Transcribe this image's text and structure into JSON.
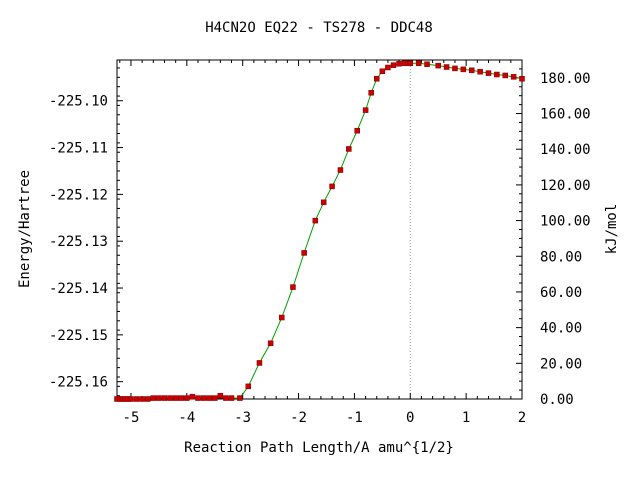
{
  "chart_data": {
    "type": "line",
    "title": "H4CN2O   EQ22 - TS278 - DDC48",
    "xlabel": "Reaction Path Length/A amu^{1/2}",
    "ylabel": "Energy/Hartree",
    "y2label": "kJ/mol",
    "xlim": [
      -5.25,
      2.0
    ],
    "ylim": [
      -225.1637,
      -225.0913
    ],
    "y2lim": [
      0.0,
      190.0
    ],
    "x_ticks": [
      "-5",
      "-4",
      "-3",
      "-2",
      "-1",
      "0",
      "1",
      "2"
    ],
    "y_ticks": [
      "-225.10",
      "-225.11",
      "-225.12",
      "-225.13",
      "-225.14",
      "-225.15",
      "-225.16"
    ],
    "y2_ticks": [
      "0.00",
      "20.00",
      "40.00",
      "60.00",
      "80.00",
      "100.00",
      "120.00",
      "140.00",
      "160.00",
      "180.00"
    ],
    "ts_x": 0.0,
    "line_color": "#00a000",
    "marker_color": "#cc0000",
    "series": [
      {
        "x": [
          -5.25,
          -5.2,
          -5.15,
          -5.1,
          -5.05,
          -5.0,
          -4.9,
          -4.8,
          -4.7,
          -4.6,
          -4.5,
          -4.4,
          -4.3,
          -4.2,
          -4.1,
          -4.0,
          -3.9,
          -3.8,
          -3.7,
          -3.6,
          -3.5,
          -3.4,
          -3.3,
          -3.2,
          -3.05,
          -2.9,
          -2.7,
          -2.5,
          -2.3,
          -2.1,
          -1.9,
          -1.7,
          -1.55,
          -1.4,
          -1.25,
          -1.1,
          -0.95,
          -0.8,
          -0.7,
          -0.6,
          -0.5,
          -0.4,
          -0.3,
          -0.2,
          -0.1,
          0.0,
          0.15,
          0.3,
          0.5,
          0.65,
          0.8,
          0.95,
          1.1,
          1.25,
          1.4,
          1.55,
          1.7,
          1.85,
          2.0
        ],
        "y": [
          -225.1637,
          -225.1637,
          -225.1637,
          -225.1637,
          -225.1637,
          -225.1637,
          -225.1637,
          -225.1637,
          -225.1637,
          -225.1635,
          -225.1635,
          -225.1635,
          -225.1635,
          -225.1635,
          -225.1635,
          -225.1635,
          -225.1632,
          -225.1635,
          -225.1635,
          -225.1635,
          -225.1635,
          -225.163,
          -225.1635,
          -225.1635,
          -225.1635,
          -225.161,
          -225.156,
          -225.1518,
          -225.1463,
          -225.1398,
          -225.1325,
          -225.1256,
          -225.1217,
          -225.1183,
          -225.1148,
          -225.1103,
          -225.1064,
          -225.102,
          -225.0983,
          -225.0953,
          -225.0937,
          -225.0929,
          -225.0924,
          -225.0921,
          -225.092,
          -225.092,
          -225.092,
          -225.0922,
          -225.0925,
          -225.0928,
          -225.0931,
          -225.0933,
          -225.0935,
          -225.0938,
          -225.0941,
          -225.0944,
          -225.0946,
          -225.0949,
          -225.0953
        ]
      }
    ]
  }
}
